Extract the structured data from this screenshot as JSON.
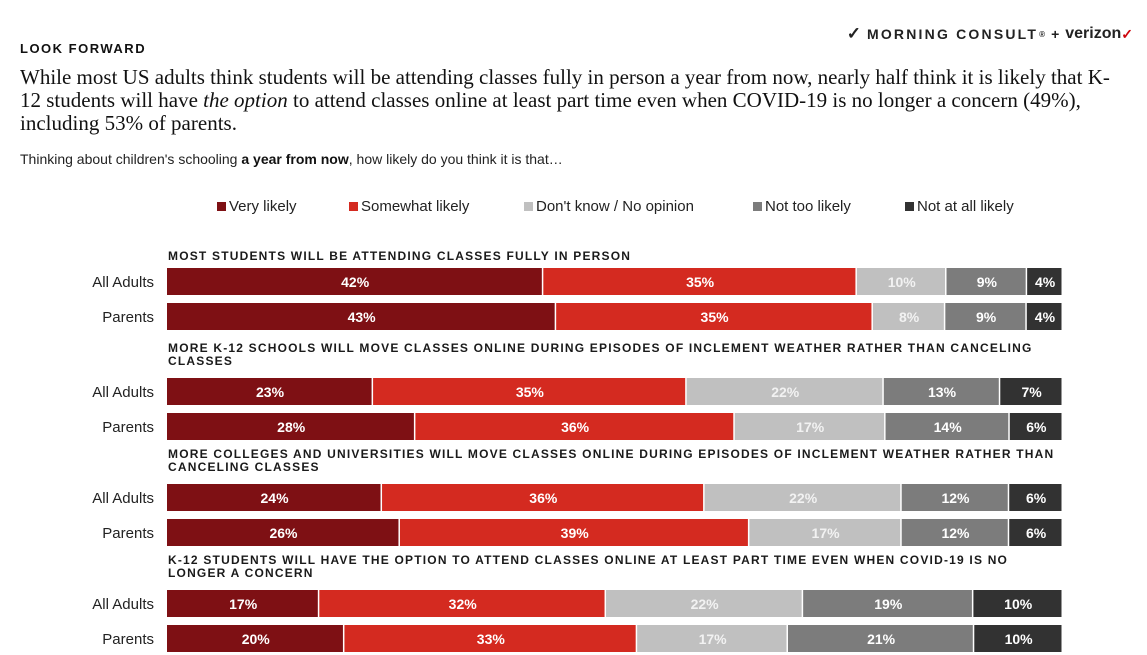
{
  "header": {
    "eyebrow": "LOOK FORWARD",
    "logo_brand": "MORNING CONSULT",
    "logo_registered": "®",
    "logo_plus": "+",
    "logo_partner": "verizon",
    "logo_partner_mark": "✓"
  },
  "headline": {
    "part1": "While most US adults think students will be attending classes fully in person a year from now, nearly half think it is likely that K-12 students will have ",
    "emphasis": "the option",
    "part2": " to attend classes online at least part time even when COVID-19 is no longer a concern (49%), including 53% of parents."
  },
  "question": {
    "part1": "Thinking about children's schooling ",
    "emphasis": "a year from now",
    "part2": ", how likely do you think it is that…"
  },
  "colors": {
    "very_likely": "#7e1014",
    "somewhat_likely": "#d42a20",
    "dont_know": "#c0c0c0",
    "not_too_likely": "#7c7c7c",
    "not_at_all_likely": "#323232"
  },
  "chart_data": {
    "type": "bar",
    "orientation": "horizontal",
    "stacked": true,
    "xlim": [
      0,
      100
    ],
    "legend_position": "top",
    "series": [
      {
        "name": "Very likely",
        "color": "#7e1014"
      },
      {
        "name": "Somewhat likely",
        "color": "#d42a20"
      },
      {
        "name": "Don't know / No opinion",
        "color": "#c0c0c0"
      },
      {
        "name": "Not too likely",
        "color": "#7c7c7c"
      },
      {
        "name": "Not at all likely",
        "color": "#323232"
      }
    ],
    "groups": [
      {
        "title": "MOST STUDENTS WILL BE ATTENDING CLASSES FULLY IN PERSON",
        "rows": [
          {
            "label": "All Adults",
            "values": [
              42,
              35,
              10,
              9,
              4
            ]
          },
          {
            "label": "Parents",
            "values": [
              43,
              35,
              8,
              9,
              4
            ]
          }
        ]
      },
      {
        "title": "MORE K-12 SCHOOLS WILL MOVE CLASSES ONLINE DURING EPISODES OF INCLEMENT WEATHER RATHER THAN CANCELING CLASSES",
        "rows": [
          {
            "label": "All Adults",
            "values": [
              23,
              35,
              22,
              13,
              7
            ]
          },
          {
            "label": "Parents",
            "values": [
              28,
              36,
              17,
              14,
              6
            ]
          }
        ]
      },
      {
        "title": "MORE COLLEGES AND UNIVERSITIES WILL MOVE CLASSES ONLINE DURING EPISODES OF INCLEMENT WEATHER RATHER THAN CANCELING CLASSES",
        "rows": [
          {
            "label": "All Adults",
            "values": [
              24,
              36,
              22,
              12,
              6
            ]
          },
          {
            "label": "Parents",
            "values": [
              26,
              39,
              17,
              12,
              6
            ]
          }
        ]
      },
      {
        "title": "K-12 STUDENTS WILL HAVE THE OPTION TO ATTEND CLASSES ONLINE AT LEAST PART TIME EVEN WHEN COVID-19 IS NO LONGER A CONCERN",
        "rows": [
          {
            "label": "All Adults",
            "values": [
              17,
              32,
              22,
              19,
              10
            ]
          },
          {
            "label": "Parents",
            "values": [
              20,
              33,
              17,
              21,
              10
            ]
          }
        ]
      }
    ]
  }
}
